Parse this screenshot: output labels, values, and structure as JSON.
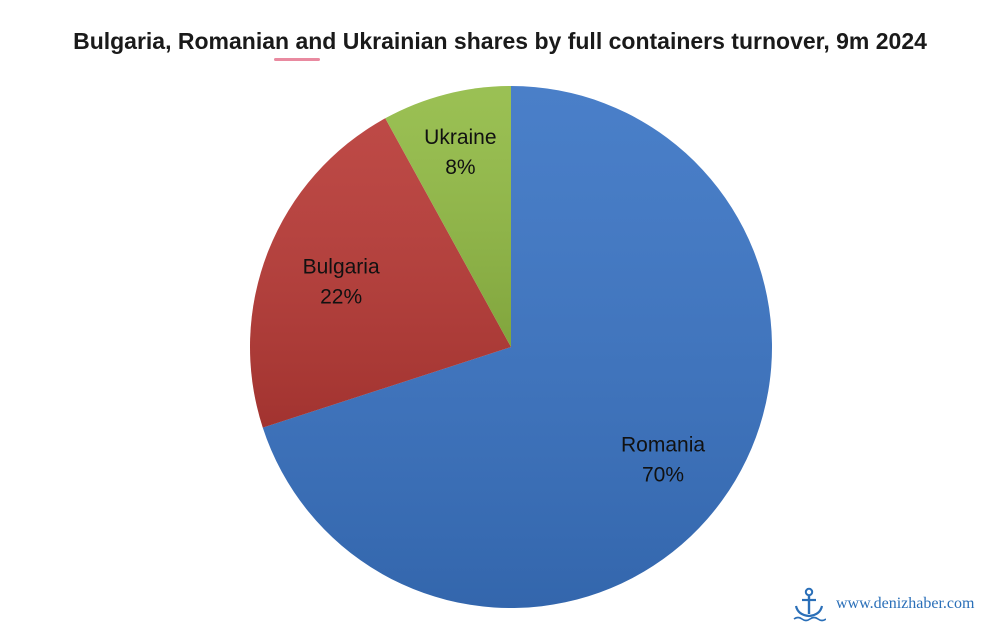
{
  "chart_data": {
    "type": "pie",
    "title": "Bulgaria, Romanian and Ukrainian shares by full containers turnover, 9m 2024",
    "slices": [
      {
        "label": "Romania",
        "value": 70,
        "value_label": "70%",
        "color": "#3a74c4"
      },
      {
        "label": "Bulgaria",
        "value": 22,
        "value_label": "22%",
        "color": "#b83a36"
      },
      {
        "label": "Ukraine",
        "value": 8,
        "value_label": "8%",
        "color": "#92bb45"
      }
    ],
    "legend": "none"
  },
  "watermark": {
    "text": "www.denizhaber.com",
    "icon": "anchor-icon"
  }
}
